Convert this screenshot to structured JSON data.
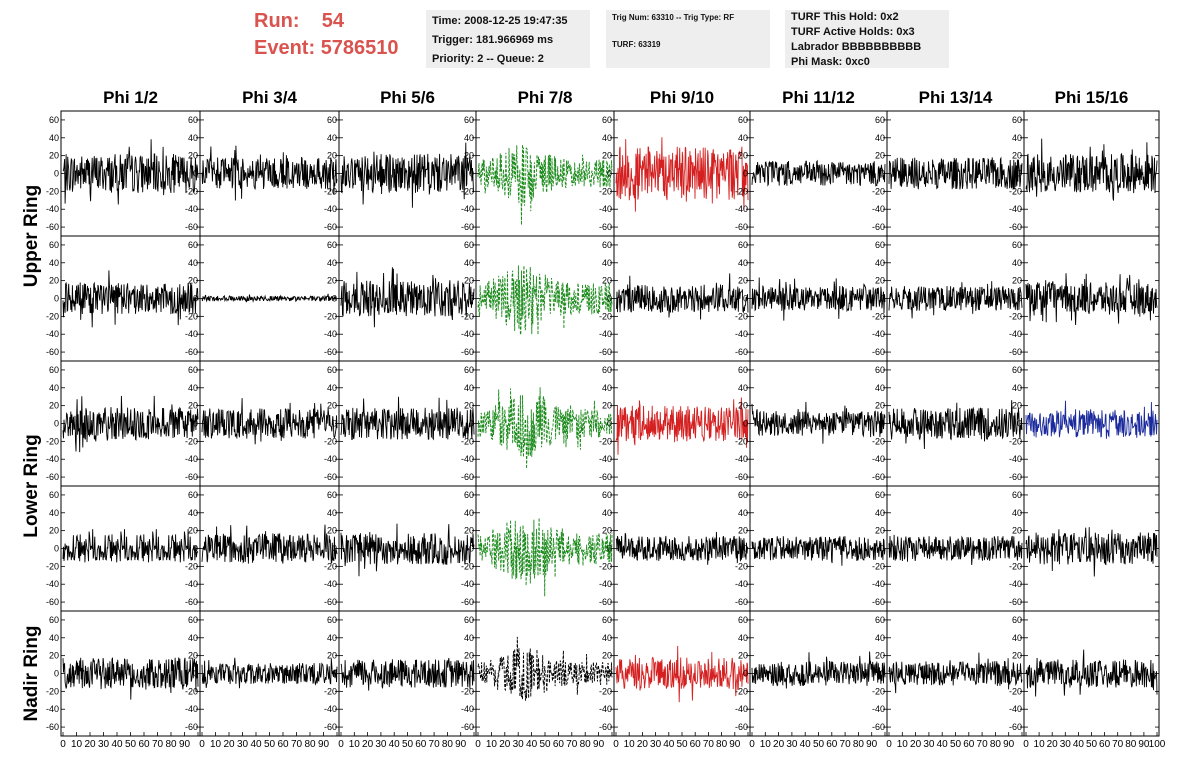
{
  "header": {
    "run_label": "Run:",
    "run_value": "54",
    "event_label": "Event:",
    "event_value": "5786510",
    "time": "Time: 2008-12-25 19:47:35",
    "trigger": "Trigger: 181.966969 ms",
    "priority": "Priority: 2 -- Queue: 2",
    "trig_num": "Trig Num: 63310 -- Trig Type: RF",
    "turf": "TURF: 63319",
    "turf_this_hold": "TURF This Hold: 0x2",
    "turf_active_holds": "TURF Active Holds: 0x3",
    "labrador": "Labrador BBBBBBBBBB",
    "phi_mask": "Phi Mask: 0xc0"
  },
  "chart_data": {
    "type": "line",
    "columns": [
      "Phi 1/2",
      "Phi 3/4",
      "Phi 5/6",
      "Phi 7/8",
      "Phi 9/10",
      "Phi 11/12",
      "Phi 13/14",
      "Phi 15/16"
    ],
    "rows": [
      "Upper Ring",
      "Lower Ring",
      "Nadir Ring"
    ],
    "ylim": [
      -70,
      70
    ],
    "yticks": [
      -60,
      -40,
      -20,
      0,
      20,
      40,
      60
    ],
    "xlim": [
      0,
      100
    ],
    "xtick_labels": [
      "0",
      "10",
      "20",
      "30",
      "40",
      "50",
      "60",
      "70",
      "80",
      "90",
      "100"
    ],
    "panel_rows": 5,
    "colors": {
      "default": "#000000",
      "green": "#1a8a1a",
      "red": "#d42020",
      "blue": "#1a2a9c"
    },
    "panels": [
      [
        {
          "amp": 22,
          "color": "default"
        },
        {
          "amp": 18,
          "color": "default"
        },
        {
          "amp": 22,
          "color": "default"
        },
        {
          "amp": 26,
          "color": "green",
          "dashed": true
        },
        {
          "amp": 30,
          "color": "red"
        },
        {
          "amp": 14,
          "color": "default"
        },
        {
          "amp": 18,
          "color": "default"
        },
        {
          "amp": 22,
          "color": "default"
        }
      ],
      [
        {
          "amp": 18,
          "color": "default"
        },
        {
          "amp": 3,
          "color": "default"
        },
        {
          "amp": 20,
          "color": "default"
        },
        {
          "amp": 30,
          "color": "green",
          "dashed": true
        },
        {
          "amp": 16,
          "color": "default"
        },
        {
          "amp": 14,
          "color": "default"
        },
        {
          "amp": 14,
          "color": "default"
        },
        {
          "amp": 18,
          "color": "default"
        }
      ],
      [
        {
          "amp": 18,
          "color": "default"
        },
        {
          "amp": 17,
          "color": "default"
        },
        {
          "amp": 18,
          "color": "default"
        },
        {
          "amp": 28,
          "color": "green",
          "dashed": true
        },
        {
          "amp": 20,
          "color": "red"
        },
        {
          "amp": 14,
          "color": "default"
        },
        {
          "amp": 18,
          "color": "default"
        },
        {
          "amp": 16,
          "color": "blue"
        }
      ],
      [
        {
          "amp": 16,
          "color": "default"
        },
        {
          "amp": 17,
          "color": "default"
        },
        {
          "amp": 18,
          "color": "default"
        },
        {
          "amp": 30,
          "color": "green",
          "dashed": true
        },
        {
          "amp": 14,
          "color": "default"
        },
        {
          "amp": 14,
          "color": "default"
        },
        {
          "amp": 14,
          "color": "default"
        },
        {
          "amp": 18,
          "color": "default"
        }
      ],
      [
        {
          "amp": 18,
          "color": "default"
        },
        {
          "amp": 12,
          "color": "default"
        },
        {
          "amp": 16,
          "color": "default"
        },
        {
          "amp": 22,
          "color": "default",
          "dashed": true
        },
        {
          "amp": 18,
          "color": "red"
        },
        {
          "amp": 14,
          "color": "default"
        },
        {
          "amp": 14,
          "color": "default"
        },
        {
          "amp": 16,
          "color": "default"
        }
      ]
    ]
  }
}
